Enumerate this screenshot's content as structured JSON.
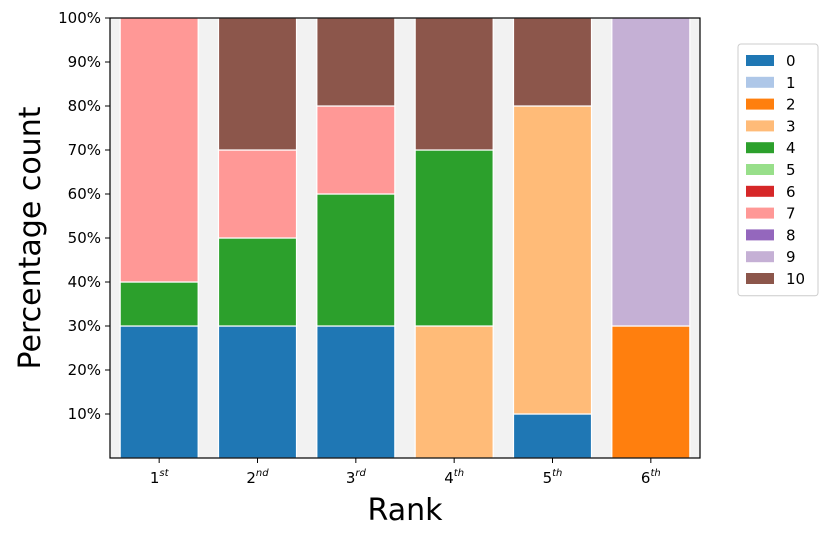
{
  "chart_data": {
    "type": "bar",
    "stacked": true,
    "xlabel": "Rank",
    "ylabel": "Percentage count",
    "categories": [
      {
        "base": "1",
        "sup": "st"
      },
      {
        "base": "2",
        "sup": "nd"
      },
      {
        "base": "3",
        "sup": "rd"
      },
      {
        "base": "4",
        "sup": "th"
      },
      {
        "base": "5",
        "sup": "th"
      },
      {
        "base": "6",
        "sup": "th"
      }
    ],
    "ylim": [
      0,
      100
    ],
    "yticks": [
      10,
      20,
      30,
      40,
      50,
      60,
      70,
      80,
      90,
      100
    ],
    "ytick_labels": [
      "10%",
      "20%",
      "30%",
      "40%",
      "50%",
      "60%",
      "70%",
      "80%",
      "90%",
      "100%"
    ],
    "legend_position": "right",
    "series": [
      {
        "name": "0",
        "color": "#1f77b4",
        "values": [
          30,
          30,
          30,
          0,
          10,
          0
        ]
      },
      {
        "name": "1",
        "color": "#aec7e8",
        "values": [
          0,
          0,
          0,
          0,
          0,
          0
        ]
      },
      {
        "name": "2",
        "color": "#ff7f0e",
        "values": [
          0,
          0,
          0,
          0,
          0,
          30
        ]
      },
      {
        "name": "3",
        "color": "#ffbb78",
        "values": [
          0,
          0,
          0,
          30,
          70,
          0
        ]
      },
      {
        "name": "4",
        "color": "#2ca02c",
        "values": [
          10,
          20,
          30,
          40,
          0,
          0
        ]
      },
      {
        "name": "5",
        "color": "#98df8a",
        "values": [
          0,
          0,
          0,
          0,
          0,
          0
        ]
      },
      {
        "name": "6",
        "color": "#d62728",
        "values": [
          0,
          0,
          0,
          0,
          0,
          0
        ]
      },
      {
        "name": "7",
        "color": "#ff9896",
        "values": [
          60,
          20,
          20,
          0,
          0,
          0
        ]
      },
      {
        "name": "8",
        "color": "#9467bd",
        "values": [
          0,
          0,
          0,
          0,
          0,
          0
        ]
      },
      {
        "name": "9",
        "color": "#c5b0d5",
        "values": [
          0,
          0,
          0,
          0,
          0,
          70
        ]
      },
      {
        "name": "10",
        "color": "#8c564b",
        "values": [
          0,
          30,
          20,
          30,
          20,
          0
        ]
      }
    ],
    "background_color": "#f2f2f2"
  }
}
